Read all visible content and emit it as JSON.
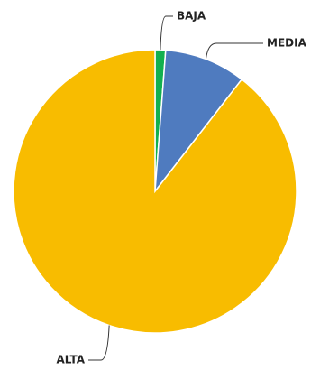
{
  "chart_data": {
    "type": "pie",
    "categories": [
      "BAJA",
      "MEDIA",
      "ALTA"
    ],
    "values": [
      1.2,
      9.3,
      89.5
    ],
    "colors": [
      "#12b04f",
      "#4f7bbf",
      "#f8bc00"
    ]
  }
}
